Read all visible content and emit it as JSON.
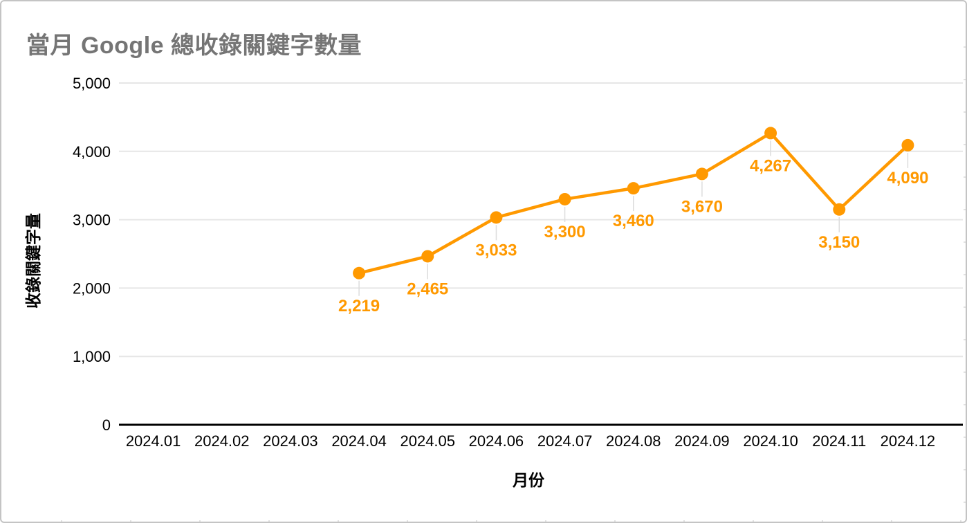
{
  "chart_data": {
    "type": "line",
    "title": "當月 Google 總收錄關鍵字數量",
    "xlabel": "月份",
    "ylabel": "收錄關鍵字量",
    "categories": [
      "2024.01",
      "2024.02",
      "2024.03",
      "2024.04",
      "2024.05",
      "2024.06",
      "2024.07",
      "2024.08",
      "2024.09",
      "2024.10",
      "2024.11",
      "2024.12"
    ],
    "series": [
      {
        "name": "收錄關鍵字量",
        "color": "#FF9900",
        "values": [
          null,
          null,
          null,
          2219,
          2465,
          3033,
          3300,
          3460,
          3670,
          4267,
          3150,
          4090
        ],
        "point_labels": [
          "",
          "",
          "",
          "2,219",
          "2,465",
          "3,033",
          "3,300",
          "3,460",
          "3,670",
          "4,267",
          "3,150",
          "4,090"
        ]
      }
    ],
    "ylim": [
      0,
      5000
    ],
    "y_ticks": [
      0,
      1000,
      2000,
      3000,
      4000,
      5000
    ],
    "y_tick_labels": [
      "0",
      "1,000",
      "2,000",
      "3,000",
      "4,000",
      "5,000"
    ],
    "grid": "horizontal",
    "legend": "none"
  },
  "style": {
    "title_color": "#757575",
    "series_color": "#FF9900",
    "gridline_color": "#e6e6e6",
    "axis_line_color": "#000000",
    "tick_label_color": "#000000",
    "leader_line_color": "#dcdcdc",
    "sheet_grid_color": "#d9d9d9",
    "frame_border_color": "#c4c4c4",
    "background_color": "#ffffff"
  }
}
